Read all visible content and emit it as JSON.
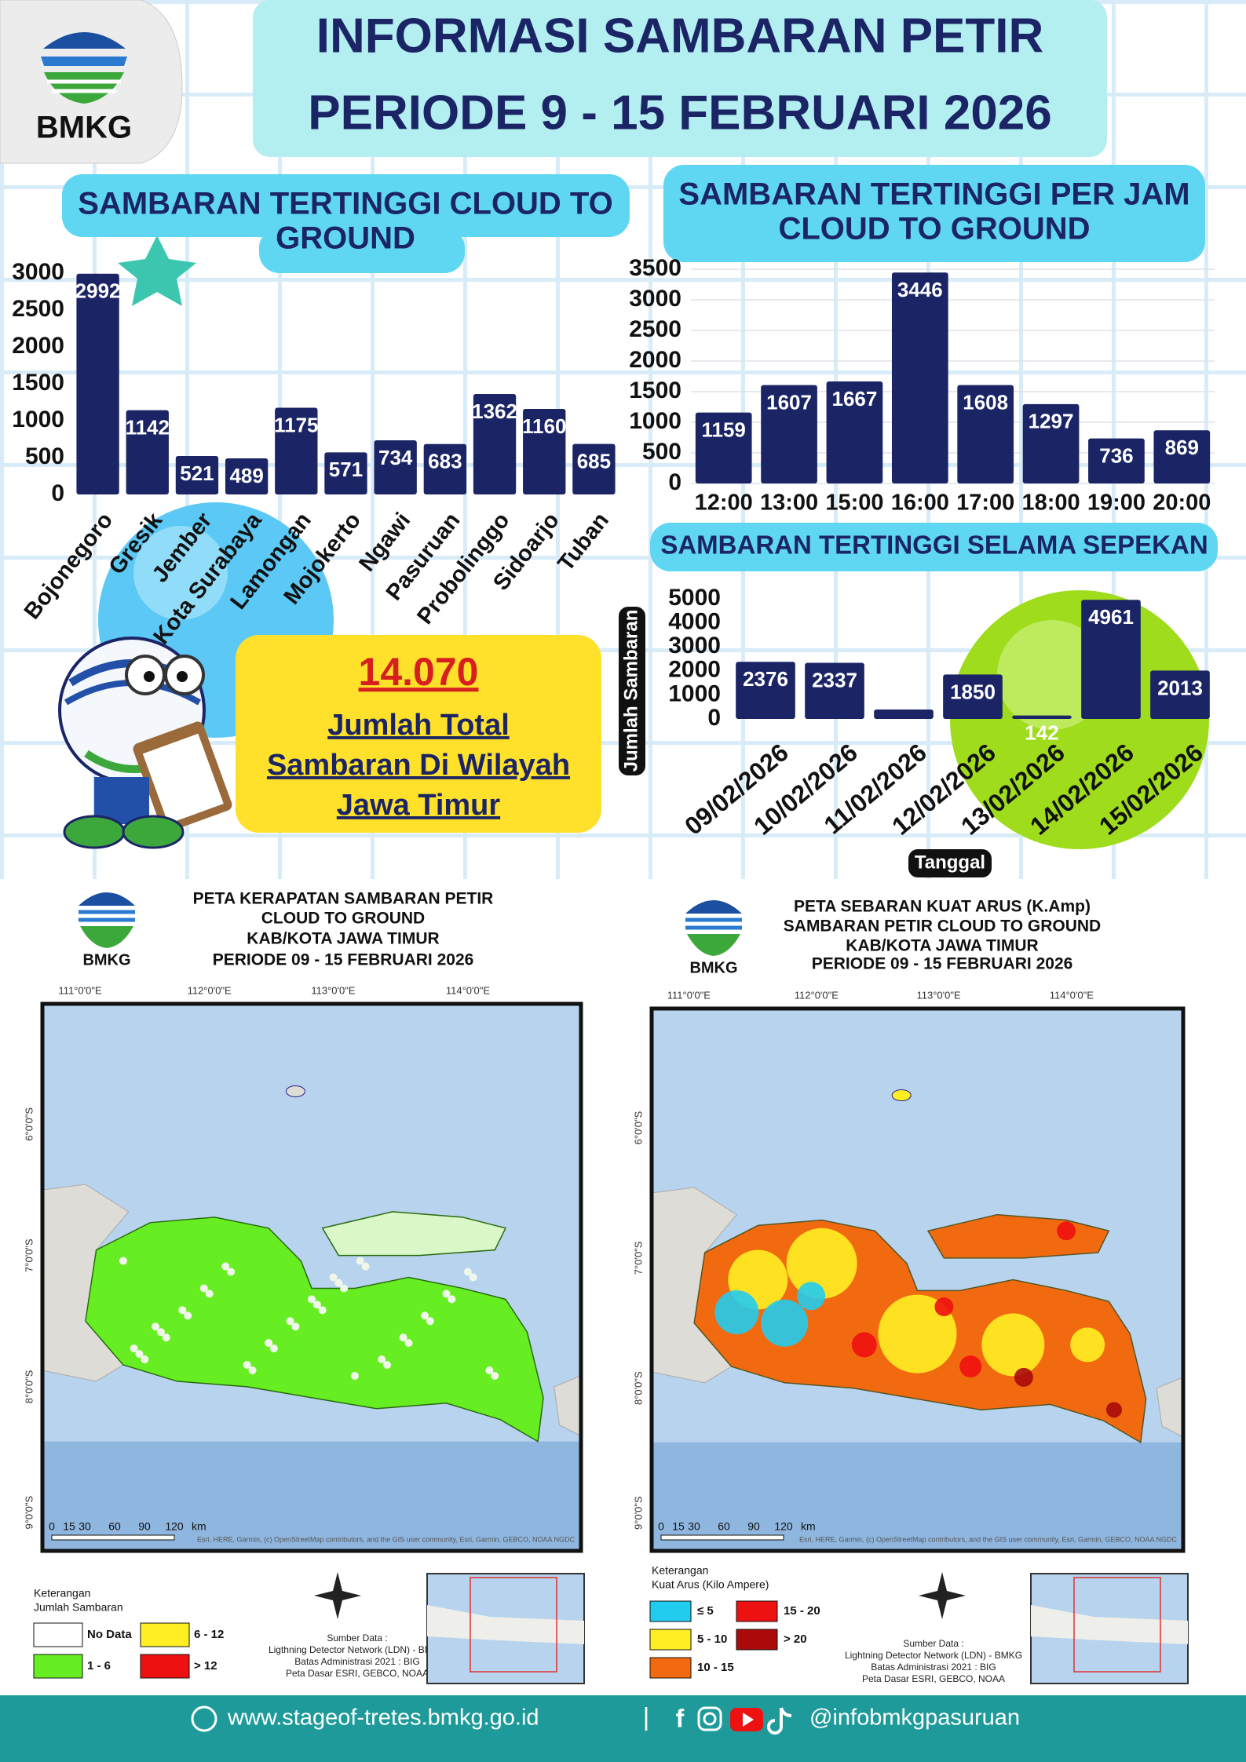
{
  "header": {
    "logo_text": "BMKG",
    "title_line1": "INFORMASI SAMBARAN PETIR",
    "title_line2": "PERIODE 9 - 15 FEBRUARI  2026"
  },
  "chart_data": [
    {
      "type": "bar",
      "title": [
        "SAMBARAN TERTINGGI  CLOUD TO",
        "GROUND"
      ],
      "categories": [
        "Bojonegoro",
        "Gresik",
        "Jember",
        "Kota Surabaya",
        "Lamongan",
        "Mojokerto",
        "Ngawi",
        "Pasuruan",
        "Probolinggo",
        "Sidoarjo",
        "Tuban"
      ],
      "values": [
        2992,
        1142,
        521,
        489,
        1175,
        571,
        734,
        683,
        1362,
        1160,
        685
      ],
      "color": "#1b2566",
      "ylim": [
        0,
        3000
      ],
      "yticks": [
        0,
        500,
        1000,
        1500,
        2000,
        2500,
        3000
      ],
      "grid": false
    },
    {
      "type": "bar",
      "title": [
        "SAMBARAN TERTINGGI PER JAM",
        "CLOUD TO GROUND"
      ],
      "categories": [
        "12:00",
        "13:00",
        "15:00",
        "16:00",
        "17:00",
        "18:00",
        "19:00",
        "20:00"
      ],
      "values": [
        1159,
        1607,
        1667,
        3446,
        1608,
        1297,
        736,
        869
      ],
      "color": "#1b2566",
      "ylim": [
        0,
        3500
      ],
      "yticks": [
        0,
        500,
        1000,
        1500,
        2000,
        2500,
        3000,
        3500
      ],
      "grid": true
    },
    {
      "type": "bar",
      "title": [
        "SAMBARAN TERTINGGI SELAMA SEPEKAN"
      ],
      "y_label": "Jumlah Sambaran",
      "x_label": "Tanggal",
      "categories": [
        "09/02/2026",
        "10/02/2026",
        "11/02/2026",
        "12/02/2026",
        "13/02/2026",
        "14/02/2026",
        "15/02/2026"
      ],
      "values": [
        2376,
        2337,
        391,
        1850,
        142,
        4961,
        2013
      ],
      "color": "#1b2566",
      "ylim": [
        0,
        5000
      ],
      "yticks": [
        0,
        1000,
        2000,
        3000,
        4000,
        5000
      ],
      "grid": false
    }
  ],
  "total": {
    "value": "14.070",
    "lines": [
      "Jumlah Total",
      "Sambaran Di Wilayah",
      "Jawa Timur"
    ]
  },
  "maps": [
    {
      "logo_text": "BMKG",
      "title": [
        "PETA KERAPATAN SAMBARAN PETIR",
        "CLOUD TO GROUND",
        "KAB/KOTA JAWA TIMUR",
        "PERIODE 09 - 15  FEBRUARI 2026"
      ],
      "lon_labels": [
        "111°0'0\"E",
        "112°0'0\"E",
        "113°0'0\"E",
        "114°0'0\"E"
      ],
      "lat_labels": [
        "6°0'0\"S",
        "7°0'0\"S",
        "8°0'0\"S",
        "9°0'0\"S"
      ],
      "scale": [
        "0",
        "15",
        "30",
        "60",
        "90",
        "120",
        "km"
      ],
      "attribution": "Esri, HERE, Garmin, (c) OpenStreetMap contributors, and the GIS user community, Esri, Garmin, GEBCO, NOAA NGDC",
      "legend_title": "Keterangan",
      "legend_subtitle": "Jumlah Sambaran",
      "legend": [
        {
          "label": "No Data",
          "color": "#ffffff"
        },
        {
          "label": "1 - 6",
          "color": "#66ee22"
        },
        {
          "label": "6 - 12",
          "color": "#ffee22"
        },
        {
          "label": "> 12",
          "color": "#ee1111"
        }
      ],
      "source": [
        "Sumber Data :",
        "Ligthning Detector Network (LDN) - BMKG",
        "Batas Administrasi 2021  : BIG",
        "Peta Dasar ESRI, GEBCO, NOAA"
      ]
    },
    {
      "logo_text": "BMKG",
      "title": [
        "PETA SEBARAN KUAT ARUS (K.Amp)",
        "SAMBARAN PETIR CLOUD TO GROUND",
        "KAB/KOTA JAWA TIMUR",
        "PERIODE 09 - 15 FEBRUARI 2026"
      ],
      "lon_labels": [
        "111°0'0\"E",
        "112°0'0\"E",
        "113°0'0\"E",
        "114°0'0\"E"
      ],
      "lat_labels": [
        "6°0'0\"S",
        "7°0'0\"S",
        "8°0'0\"S",
        "9°0'0\"S"
      ],
      "scale": [
        "0",
        "15",
        "30",
        "60",
        "90",
        "120",
        "km"
      ],
      "attribution": "Esri, HERE, Garmin, (c) OpenStreetMap contributors, and the GIS user community, Esri, Garmin, GEBCO, NOAA NGDC",
      "legend_title": "Keterangan",
      "legend_subtitle": "Kuat Arus (Kilo Ampere)",
      "legend": [
        {
          "label": "≤ 5",
          "color": "#22ccee"
        },
        {
          "label": "5 - 10",
          "color": "#ffee22"
        },
        {
          "label": "10 - 15",
          "color": "#f26a10"
        },
        {
          "label": "15 - 20",
          "color": "#ee1111"
        },
        {
          "label": "> 20",
          "color": "#aa0a0a"
        }
      ],
      "source": [
        "Sumber Data :",
        "Lightning Detector Network (LDN) - BMKG",
        "Batas Administrasi 2021  : BIG",
        "Peta Dasar ESRI, GEBCO, NOAA"
      ]
    }
  ],
  "footer": {
    "website": "www.stageof-tretes.bmkg.go.id",
    "separator": "|",
    "social": "@infobmkgpasuruan"
  }
}
